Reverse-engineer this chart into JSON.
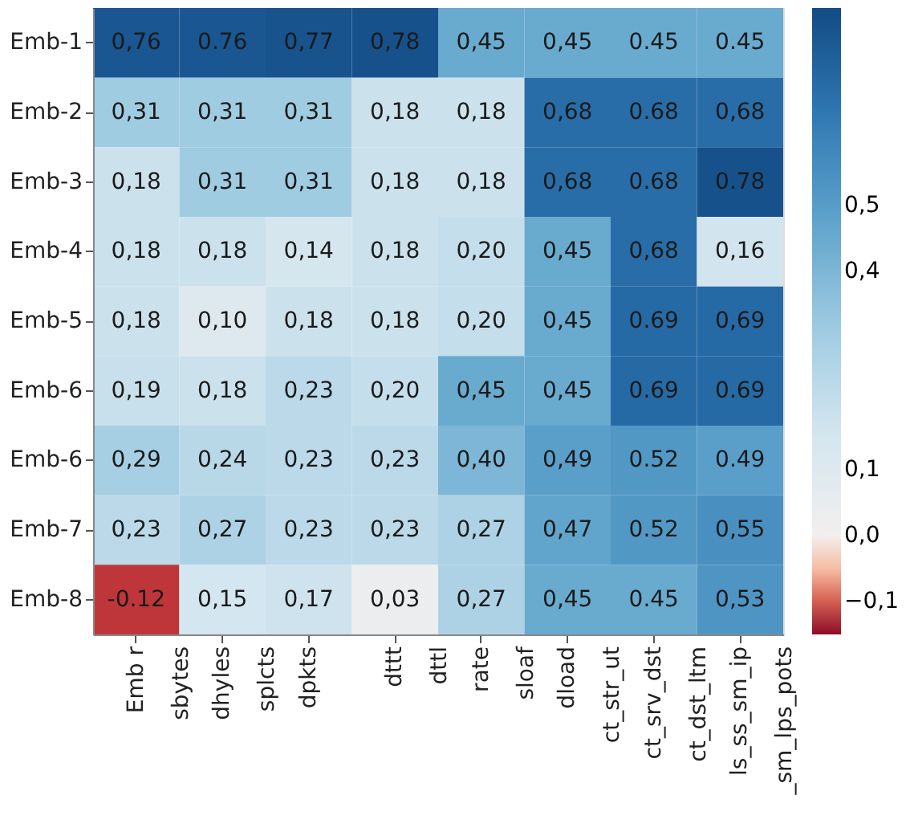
{
  "chart_data": {
    "type": "heatmap",
    "categories": [
      "Emb r\nsbytes",
      "dhyles\nsplcts",
      "dpkts",
      "dttt\ndttl",
      "rate\nsloaf",
      "dload\nct_str_ut",
      "ct_srv_dst\nct_dst_ltm",
      "ls_ss_sm_ip\n_sm_lps_pots"
    ],
    "y_categories": [
      "Emb-1",
      "Emb-2",
      "Emb-3",
      "Emb-4",
      "Emb-5",
      "Emb-6",
      "Emb-6",
      "Emb-7",
      "Emb-8"
    ],
    "cells": [
      [
        0.76,
        0.76,
        0.77,
        0.78,
        0.45,
        0.45,
        0.45,
        0.45
      ],
      [
        0.31,
        0.31,
        0.31,
        0.18,
        0.18,
        0.68,
        0.68,
        0.68
      ],
      [
        0.18,
        0.31,
        0.31,
        0.18,
        0.18,
        0.68,
        0.68,
        0.78
      ],
      [
        0.18,
        0.18,
        0.14,
        0.18,
        0.2,
        0.45,
        0.68,
        0.16
      ],
      [
        0.18,
        0.1,
        0.18,
        0.18,
        0.2,
        0.45,
        0.69,
        0.69
      ],
      [
        0.19,
        0.18,
        0.23,
        0.2,
        0.45,
        0.45,
        0.69,
        0.69
      ],
      [
        0.29,
        0.24,
        0.23,
        0.23,
        0.4,
        0.49,
        0.52,
        0.49
      ],
      [
        0.23,
        0.27,
        0.23,
        0.23,
        0.27,
        0.47,
        0.52,
        0.55
      ],
      [
        -0.12,
        0.15,
        0.17,
        0.03,
        0.27,
        0.45,
        0.45,
        0.53
      ]
    ],
    "cell_labels": [
      [
        "0,76",
        "0.76",
        "0,77",
        "0,78",
        "0,45",
        "0,45",
        "0.45",
        "0.45"
      ],
      [
        "0,31",
        "0,31",
        "0,31",
        "0,18",
        "0,18",
        "0,68",
        "0.68",
        "0,68"
      ],
      [
        "0,18",
        "0,31",
        "0,31",
        "0,18",
        "0,18",
        "0,68",
        "0.68",
        "0.78"
      ],
      [
        "0,18",
        "0,18",
        "0,14",
        "0,18",
        "0,20",
        "0,45",
        "0,68",
        "0,16"
      ],
      [
        "0,18",
        "0,10",
        "0,18",
        "0,18",
        "0,20",
        "0,45",
        "0.69",
        "0,69"
      ],
      [
        "0,19",
        "0,18",
        "0,23",
        "0,20",
        "0,45",
        "0,45",
        "0.69",
        "0.69"
      ],
      [
        "0,29",
        "0,24",
        "0,23",
        "0,23",
        "0,40",
        "0,49",
        "0.52",
        "0.49"
      ],
      [
        "0,23",
        "0,27",
        "0,23",
        "0,23",
        "0,27",
        "0,47",
        "0.52",
        "0,55"
      ],
      [
        "-0.12",
        "0,15",
        "0,17",
        "0,03",
        "0,27",
        "0,45",
        "0.45",
        "0,53"
      ]
    ],
    "clim": [
      -0.15,
      0.8
    ],
    "cticks": [
      {
        "value": 0.5,
        "label": "0,5"
      },
      {
        "value": 0.4,
        "label": "0,4"
      },
      {
        "value": 0.1,
        "label": "0,1"
      },
      {
        "value": 0.0,
        "label": "0,0"
      },
      {
        "value": -0.1,
        "label": "−0,1"
      }
    ]
  }
}
